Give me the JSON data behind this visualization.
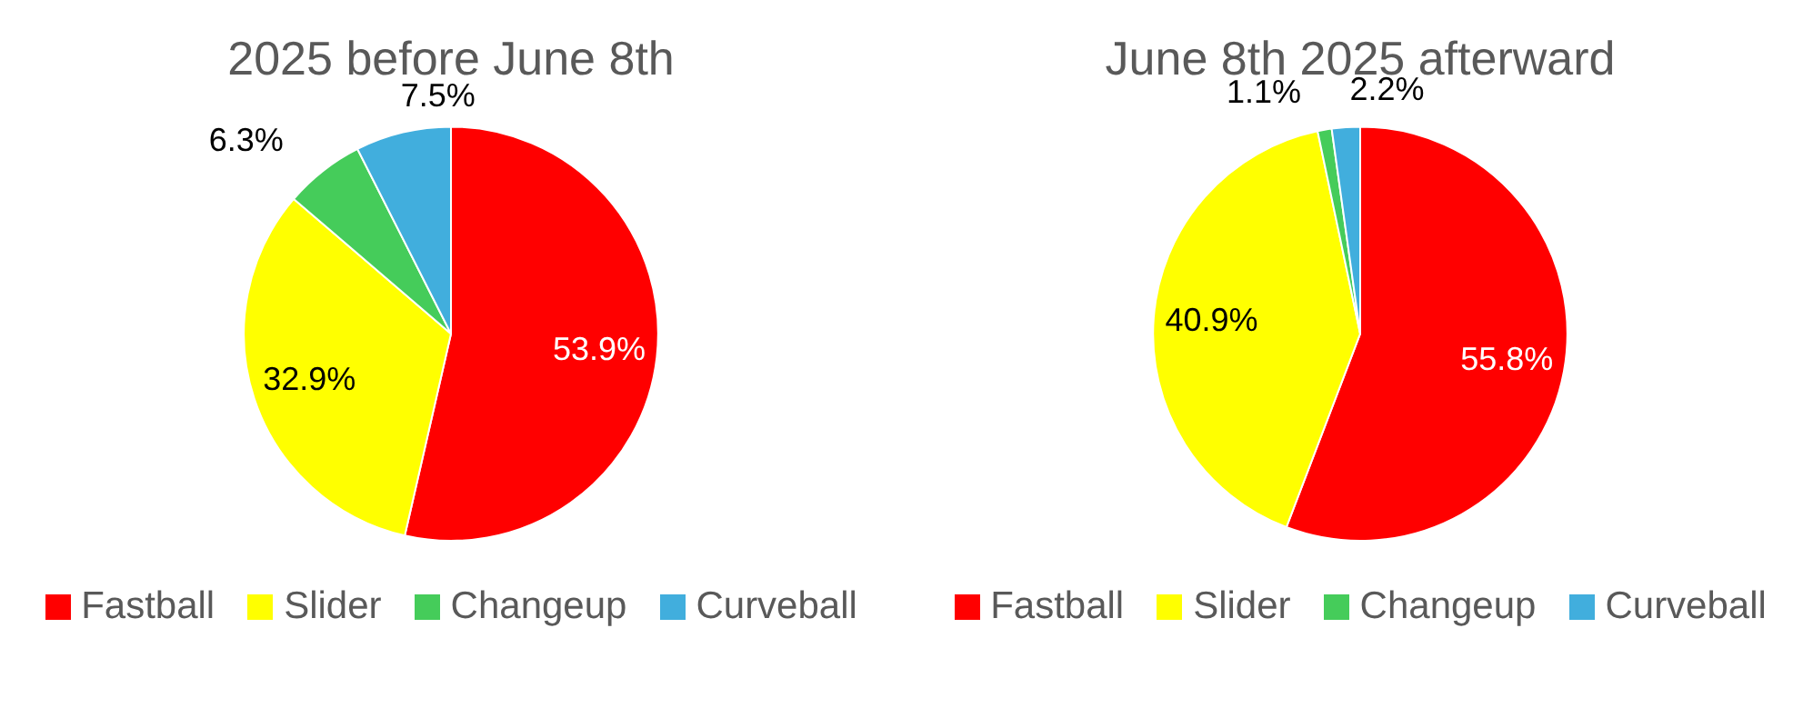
{
  "chart_data": [
    {
      "type": "pie",
      "title": "2025 before June 8th",
      "categories": [
        "Fastball",
        "Slider",
        "Changeup",
        "Curveball"
      ],
      "values": [
        53.9,
        32.9,
        6.3,
        7.5
      ],
      "colors": [
        "#ff0000",
        "#ffff00",
        "#45cc5a",
        "#41aedd"
      ],
      "value_labels": [
        "53.9%",
        "32.9%",
        "6.3%",
        "7.5%"
      ],
      "legend": "bottom"
    },
    {
      "type": "pie",
      "title": "June 8th 2025 afterward",
      "categories": [
        "Fastball",
        "Slider",
        "Changeup",
        "Curveball"
      ],
      "values": [
        55.8,
        40.9,
        1.1,
        2.2
      ],
      "colors": [
        "#ff0000",
        "#ffff00",
        "#45cc5a",
        "#41aedd"
      ],
      "value_labels": [
        "55.8%",
        "40.9%",
        "1.1%",
        "2.2%"
      ],
      "legend": "bottom"
    }
  ]
}
